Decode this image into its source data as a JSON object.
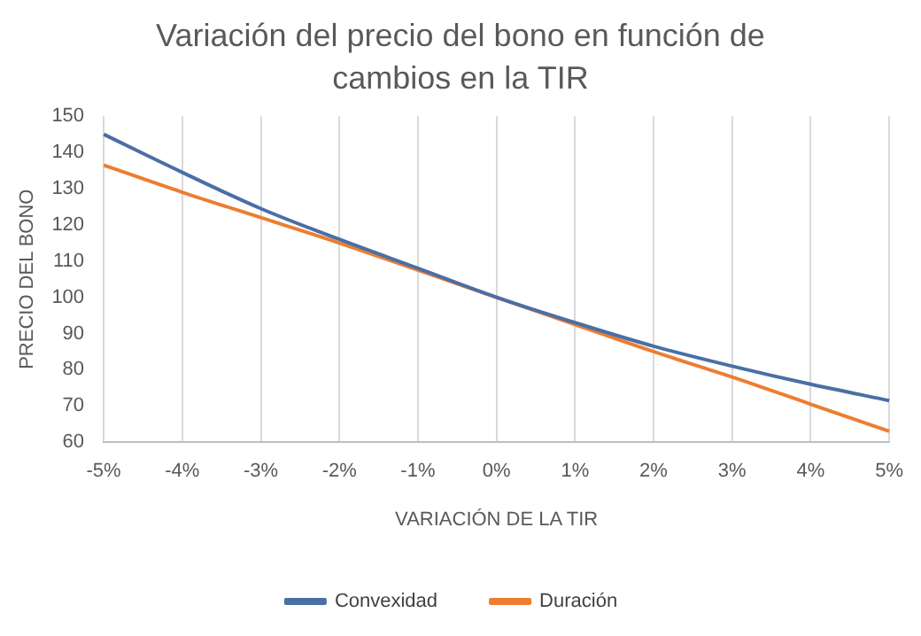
{
  "chart_data": {
    "type": "line",
    "title": "Variación del precio del bono en función de cambios en la TIR",
    "xlabel": "VARIACIÓN DE LA TIR",
    "ylabel": "PRECIO DEL BONO",
    "categories": [
      "-5%",
      "-4%",
      "-3%",
      "-2%",
      "-1%",
      "0%",
      "1%",
      "2%",
      "3%",
      "4%",
      "5%"
    ],
    "series": [
      {
        "name": "Convexidad",
        "color": "#4a6fa5",
        "values": [
          145,
          134.5,
          124.5,
          116,
          108,
          100,
          93,
          86.5,
          81,
          76,
          71.5
        ]
      },
      {
        "name": "Duración",
        "color": "#ed7d31",
        "values": [
          136.5,
          129,
          122,
          115,
          107.5,
          100,
          92.5,
          85,
          78,
          70.5,
          63
        ]
      }
    ],
    "ylim": [
      60,
      150
    ],
    "yticks": [
      60,
      70,
      80,
      90,
      100,
      110,
      120,
      130,
      140,
      150
    ],
    "grid": "x",
    "legend": "bottom",
    "marker": "none",
    "line_style": "solid"
  }
}
